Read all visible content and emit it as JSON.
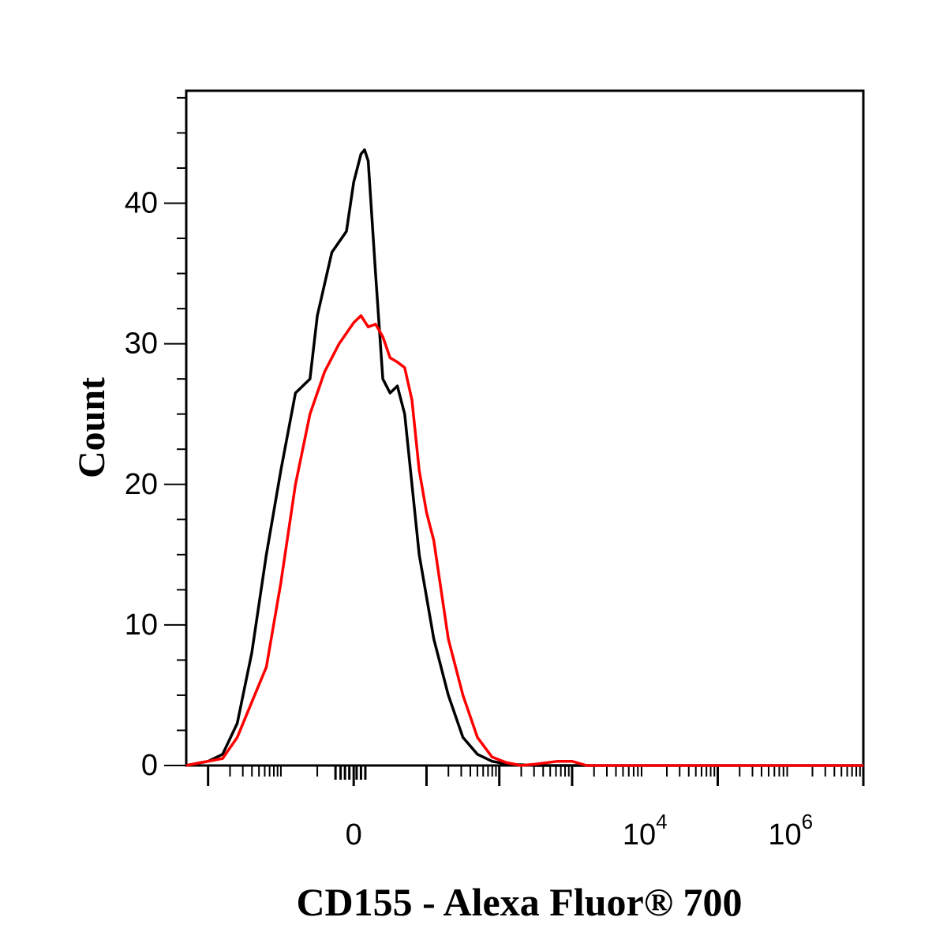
{
  "chart_data": {
    "type": "line",
    "xlabel": "CD155 - Alexa Fluor® 700",
    "ylabel": "Count",
    "ylim": [
      0,
      48
    ],
    "x_scale": "biexponential",
    "y_ticks": [
      "0",
      "10",
      "20",
      "30",
      "40"
    ],
    "x_ticks": [
      {
        "label": "0",
        "power": ""
      },
      {
        "label": "10",
        "power": "4"
      },
      {
        "label": "10",
        "power": "6"
      }
    ],
    "grid": false,
    "legend": "none",
    "series": [
      {
        "color": "#000000",
        "x": [
          -2.3,
          -2.1,
          -2.0,
          -1.8,
          -1.6,
          -1.4,
          -1.2,
          -1.0,
          -0.8,
          -0.6,
          -0.5,
          -0.3,
          -0.1,
          0.0,
          0.1,
          0.15,
          0.2,
          0.3,
          0.4,
          0.5,
          0.6,
          0.7,
          0.8,
          0.9,
          1.1,
          1.3,
          1.5,
          1.7,
          1.9,
          2.1,
          2.3,
          2.5,
          3.0,
          3.5,
          4.0,
          5.0,
          6.0,
          7.0
        ],
        "y": [
          0.0,
          0.2,
          0.3,
          0.8,
          3.0,
          8.0,
          15.0,
          21.0,
          26.5,
          27.5,
          32.0,
          36.5,
          38.0,
          41.5,
          43.5,
          43.8,
          43.0,
          35.0,
          27.5,
          26.5,
          27.0,
          25.0,
          20.0,
          15.0,
          9.0,
          5.0,
          2.0,
          0.8,
          0.3,
          0.1,
          0.05,
          0.0,
          0.0,
          0.0,
          0.0,
          0.0,
          0.0,
          0.0
        ]
      },
      {
        "color": "#ff0000",
        "x": [
          -2.3,
          -2.1,
          -2.0,
          -1.8,
          -1.6,
          -1.4,
          -1.2,
          -1.0,
          -0.8,
          -0.6,
          -0.4,
          -0.2,
          0.0,
          0.1,
          0.2,
          0.3,
          0.4,
          0.5,
          0.6,
          0.7,
          0.8,
          0.9,
          1.0,
          1.1,
          1.3,
          1.5,
          1.7,
          1.9,
          2.1,
          2.3,
          2.5,
          2.8,
          3.0,
          3.2,
          3.5,
          4.0,
          5.0,
          6.0,
          7.0
        ],
        "y": [
          0.0,
          0.2,
          0.3,
          0.5,
          2.0,
          4.5,
          7.0,
          13.0,
          20.0,
          25.0,
          28.0,
          30.0,
          31.5,
          32.0,
          31.2,
          31.4,
          30.5,
          29.0,
          28.7,
          28.3,
          26.0,
          21.0,
          18.0,
          16.0,
          9.0,
          5.0,
          2.0,
          0.6,
          0.2,
          0.0,
          0.1,
          0.3,
          0.3,
          0.0,
          0.0,
          0.0,
          0.0,
          0.0,
          0.0
        ]
      }
    ]
  }
}
